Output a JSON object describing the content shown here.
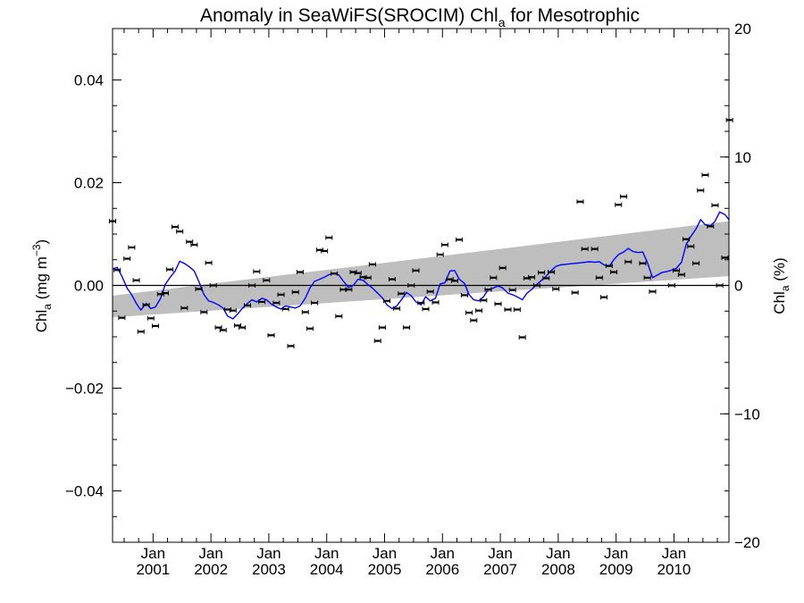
{
  "chart_data": {
    "type": "scatter",
    "title": {
      "main": "Anomaly in SeaWiFS(SROCIM) Chl",
      "sub": "a",
      "rest": " for Mesotrophic"
    },
    "ylabel_left": {
      "main": "Chl",
      "sub": "a",
      "units": " (mg m",
      "sup": "−3",
      "close": ")"
    },
    "ylabel_right": {
      "main": "Chl",
      "sub": "a",
      "units": " (%)"
    },
    "ylim_left": [
      -0.05,
      0.05
    ],
    "ylim_right": [
      -20,
      20
    ],
    "xlim": [
      2000.3,
      2010.95
    ],
    "yticks_left": [
      {
        "v": 0.04,
        "label": "0.04"
      },
      {
        "v": 0.02,
        "label": "0.02"
      },
      {
        "v": 0.0,
        "label": "0.00"
      },
      {
        "v": -0.02,
        "label": "−0.02"
      },
      {
        "v": -0.04,
        "label": "−0.04"
      }
    ],
    "yticks_right": [
      {
        "v": 20,
        "label": "20"
      },
      {
        "v": 10,
        "label": "10"
      },
      {
        "v": 0,
        "label": "0"
      },
      {
        "v": -10,
        "label": "−10"
      },
      {
        "v": -20,
        "label": "−20"
      }
    ],
    "xticks": [
      {
        "x": 2001.0,
        "month": "Jan",
        "year": "2001"
      },
      {
        "x": 2002.0,
        "month": "Jan",
        "year": "2002"
      },
      {
        "x": 2003.0,
        "month": "Jan",
        "year": "2003"
      },
      {
        "x": 2004.0,
        "month": "Jan",
        "year": "2004"
      },
      {
        "x": 2005.0,
        "month": "Jan",
        "year": "2005"
      },
      {
        "x": 2006.0,
        "month": "Jan",
        "year": "2006"
      },
      {
        "x": 2007.0,
        "month": "Jan",
        "year": "2007"
      },
      {
        "x": 2008.0,
        "month": "Jan",
        "year": "2008"
      },
      {
        "x": 2009.0,
        "month": "Jan",
        "year": "2009"
      },
      {
        "x": 2010.0,
        "month": "Jan",
        "year": "2010"
      }
    ],
    "band": {
      "x": [
        2000.3,
        2010.95
      ],
      "upper": [
        -0.002,
        0.0125
      ],
      "lower": [
        -0.0062,
        0.0018
      ],
      "color": "#bebebe"
    },
    "zero_line": 0,
    "series": [
      {
        "style": "markers",
        "color": "#000000",
        "points": [
          [
            2000.3,
            0.0125
          ],
          [
            2000.38,
            0.003
          ],
          [
            2000.46,
            -0.0063
          ],
          [
            2000.55,
            0.0052
          ],
          [
            2000.63,
            0.0074
          ],
          [
            2000.71,
            0.001
          ],
          [
            2000.79,
            -0.009
          ],
          [
            2000.88,
            -0.0038
          ],
          [
            2000.96,
            -0.0064
          ],
          [
            2001.04,
            -0.0079
          ],
          [
            2001.13,
            -0.0017
          ],
          [
            2001.21,
            -0.0015
          ],
          [
            2001.29,
            0.0031
          ],
          [
            2001.38,
            0.0114
          ],
          [
            2001.46,
            0.0105
          ],
          [
            2001.54,
            -0.0044
          ],
          [
            2001.63,
            0.0085
          ],
          [
            2001.71,
            0.0079
          ],
          [
            2001.79,
            -0.0007
          ],
          [
            2001.88,
            -0.0052
          ],
          [
            2001.96,
            0.0044
          ],
          [
            2002.04,
            0.0
          ],
          [
            2002.13,
            -0.0082
          ],
          [
            2002.21,
            -0.0087
          ],
          [
            2002.29,
            -0.0047
          ],
          [
            2002.38,
            -0.0049
          ],
          [
            2002.46,
            -0.0078
          ],
          [
            2002.54,
            -0.0082
          ],
          [
            2002.63,
            -0.0039
          ],
          [
            2002.71,
            0.0
          ],
          [
            2002.79,
            0.0027
          ],
          [
            2002.88,
            -0.0032
          ],
          [
            2002.96,
            0.001
          ],
          [
            2003.04,
            -0.0097
          ],
          [
            2003.13,
            -0.0034
          ],
          [
            2003.21,
            -0.0018
          ],
          [
            2003.29,
            -0.0046
          ],
          [
            2003.38,
            -0.0118
          ],
          [
            2003.46,
            -0.0013
          ],
          [
            2003.54,
            0.0026
          ],
          [
            2003.63,
            -0.0052
          ],
          [
            2003.71,
            -0.0084
          ],
          [
            2003.79,
            -0.0034
          ],
          [
            2003.88,
            0.0069
          ],
          [
            2003.96,
            0.0067
          ],
          [
            2004.04,
            0.0093
          ],
          [
            2004.13,
            0.0023
          ],
          [
            2004.21,
            -0.006
          ],
          [
            2004.29,
            -0.0008
          ],
          [
            2004.38,
            -0.0008
          ],
          [
            2004.46,
            0.0026
          ],
          [
            2004.54,
            0.0024
          ],
          [
            2004.63,
            0.0016
          ],
          [
            2004.71,
            0.0015
          ],
          [
            2004.79,
            0.0041
          ],
          [
            2004.88,
            -0.0108
          ],
          [
            2004.96,
            -0.0082
          ],
          [
            2005.04,
            -0.003
          ],
          [
            2005.13,
            0.0012
          ],
          [
            2005.21,
            -0.0045
          ],
          [
            2005.29,
            -0.0016
          ],
          [
            2005.38,
            -0.0082
          ],
          [
            2005.46,
            0.0
          ],
          [
            2005.54,
            0.0029
          ],
          [
            2005.63,
            -0.0034
          ],
          [
            2005.71,
            -0.0046
          ],
          [
            2005.79,
            -0.0012
          ],
          [
            2005.88,
            -0.0033
          ],
          [
            2005.96,
            0.006
          ],
          [
            2006.04,
            0.0079
          ],
          [
            2006.13,
            0.0012
          ],
          [
            2006.21,
            0.0009
          ],
          [
            2006.29,
            0.0089
          ],
          [
            2006.38,
            -0.0019
          ],
          [
            2006.46,
            -0.0053
          ],
          [
            2006.54,
            -0.0068
          ],
          [
            2006.63,
            -0.0049
          ],
          [
            2006.71,
            -0.0029
          ],
          [
            2006.79,
            -0.0008
          ],
          [
            2006.88,
            0.0015
          ],
          [
            2006.96,
            -0.0036
          ],
          [
            2007.04,
            0.0034
          ],
          [
            2007.13,
            -0.0047
          ],
          [
            2007.21,
            -0.0009
          ],
          [
            2007.29,
            -0.0047
          ],
          [
            2007.38,
            -0.0101
          ],
          [
            2007.46,
            0.0014
          ],
          [
            2007.54,
            0.0016
          ],
          [
            2007.63,
            0.0
          ],
          [
            2007.71,
            0.0025
          ],
          [
            2007.79,
            0.0014
          ],
          [
            2007.88,
            0.0026
          ],
          [
            2007.96,
            -0.0007
          ],
          [
            2008.29,
            -0.0014
          ],
          [
            2008.38,
            0.0163
          ],
          [
            2008.46,
            0.0071
          ],
          [
            2008.63,
            0.0071
          ],
          [
            2008.71,
            0.0015
          ],
          [
            2008.79,
            -0.0023
          ],
          [
            2008.88,
            0.0038
          ],
          [
            2008.96,
            0.0026
          ],
          [
            2009.04,
            0.0157
          ],
          [
            2009.13,
            0.0173
          ],
          [
            2009.21,
            0.0046
          ],
          [
            2009.46,
            0.0043
          ],
          [
            2009.54,
            0.0015
          ],
          [
            2009.63,
            -0.0012
          ],
          [
            2009.96,
            0.0
          ],
          [
            2010.04,
            0.0029
          ],
          [
            2010.13,
            0.0021
          ],
          [
            2010.21,
            0.009
          ],
          [
            2010.29,
            0.0076
          ],
          [
            2010.38,
            0.0043
          ],
          [
            2010.46,
            0.0185
          ],
          [
            2010.54,
            0.0215
          ],
          [
            2010.63,
            0.0115
          ],
          [
            2010.71,
            0.0156
          ],
          [
            2010.79,
            0.0
          ],
          [
            2010.88,
            0.0054
          ],
          [
            2010.96,
            0.0322
          ]
        ]
      },
      {
        "style": "line",
        "color": "#0000ff",
        "points": [
          [
            2000.3,
            0.0032
          ],
          [
            2000.38,
            0.0035
          ],
          [
            2000.46,
            0.0018
          ],
          [
            2000.55,
            -0.0005
          ],
          [
            2000.63,
            -0.0018
          ],
          [
            2000.71,
            -0.0035
          ],
          [
            2000.79,
            -0.0048
          ],
          [
            2000.88,
            -0.0035
          ],
          [
            2000.96,
            -0.0045
          ],
          [
            2001.04,
            -0.0042
          ],
          [
            2001.13,
            -0.0025
          ],
          [
            2001.21,
            0.0002
          ],
          [
            2001.29,
            0.0015
          ],
          [
            2001.38,
            0.0028
          ],
          [
            2001.46,
            0.0047
          ],
          [
            2001.54,
            0.0043
          ],
          [
            2001.63,
            0.0036
          ],
          [
            2001.71,
            0.0028
          ],
          [
            2001.79,
            0.0008
          ],
          [
            2001.88,
            -0.0018
          ],
          [
            2001.96,
            -0.003
          ],
          [
            2002.04,
            -0.0033
          ],
          [
            2002.13,
            -0.0038
          ],
          [
            2002.21,
            -0.0044
          ],
          [
            2002.29,
            -0.006
          ],
          [
            2002.38,
            -0.0065
          ],
          [
            2002.46,
            -0.0056
          ],
          [
            2002.54,
            -0.0045
          ],
          [
            2002.63,
            -0.0035
          ],
          [
            2002.71,
            -0.0028
          ],
          [
            2002.79,
            -0.0032
          ],
          [
            2002.88,
            -0.0025
          ],
          [
            2002.96,
            -0.0028
          ],
          [
            2003.04,
            -0.0036
          ],
          [
            2003.13,
            -0.0042
          ],
          [
            2003.21,
            -0.0046
          ],
          [
            2003.29,
            -0.004
          ],
          [
            2003.38,
            -0.0042
          ],
          [
            2003.46,
            -0.0044
          ],
          [
            2003.54,
            -0.004
          ],
          [
            2003.63,
            -0.0025
          ],
          [
            2003.71,
            -0.0005
          ],
          [
            2003.79,
            0.0008
          ],
          [
            2003.88,
            0.0012
          ],
          [
            2003.96,
            0.0016
          ],
          [
            2004.04,
            0.0021
          ],
          [
            2004.13,
            0.0024
          ],
          [
            2004.21,
            0.002
          ],
          [
            2004.29,
            0.0008
          ],
          [
            2004.38,
            -0.0004
          ],
          [
            2004.46,
            0.0
          ],
          [
            2004.54,
            0.0012
          ],
          [
            2004.63,
            0.001
          ],
          [
            2004.71,
            0.0002
          ],
          [
            2004.79,
            -0.0005
          ],
          [
            2004.88,
            -0.0015
          ],
          [
            2004.96,
            -0.0024
          ],
          [
            2005.04,
            -0.0038
          ],
          [
            2005.13,
            -0.0045
          ],
          [
            2005.21,
            -0.004
          ],
          [
            2005.29,
            -0.0028
          ],
          [
            2005.38,
            -0.0014
          ],
          [
            2005.46,
            -0.002
          ],
          [
            2005.54,
            -0.0032
          ],
          [
            2005.63,
            -0.0038
          ],
          [
            2005.71,
            -0.0022
          ],
          [
            2005.79,
            -0.003
          ],
          [
            2005.88,
            -0.0025
          ],
          [
            2005.96,
            0.0003
          ],
          [
            2006.04,
            0.0005
          ],
          [
            2006.13,
            0.0028
          ],
          [
            2006.21,
            0.0029
          ],
          [
            2006.29,
            0.0012
          ],
          [
            2006.38,
            0.0004
          ],
          [
            2006.46,
            -0.0018
          ],
          [
            2006.54,
            -0.0028
          ],
          [
            2006.63,
            -0.003
          ],
          [
            2006.71,
            -0.0022
          ],
          [
            2006.79,
            -0.0008
          ],
          [
            2006.88,
            -0.0005
          ],
          [
            2006.96,
            -0.0001
          ],
          [
            2007.04,
            -0.0005
          ],
          [
            2007.13,
            -0.0015
          ],
          [
            2007.21,
            -0.0018
          ],
          [
            2007.29,
            -0.0022
          ],
          [
            2007.38,
            -0.0028
          ],
          [
            2007.46,
            -0.0015
          ],
          [
            2007.54,
            -0.0008
          ],
          [
            2007.63,
            0.0002
          ],
          [
            2007.71,
            0.001
          ],
          [
            2007.79,
            0.0018
          ],
          [
            2007.88,
            0.0029
          ],
          [
            2007.96,
            0.0037
          ],
          [
            2008.04,
            0.004
          ],
          [
            2008.13,
            0.0041
          ],
          [
            2008.21,
            0.0042
          ],
          [
            2008.29,
            0.0043
          ],
          [
            2008.38,
            0.0044
          ],
          [
            2008.46,
            0.0045
          ],
          [
            2008.54,
            0.0046
          ],
          [
            2008.63,
            0.0045
          ],
          [
            2008.71,
            0.0046
          ],
          [
            2008.79,
            0.004
          ],
          [
            2008.88,
            0.0037
          ],
          [
            2008.96,
            0.005
          ],
          [
            2009.04,
            0.006
          ],
          [
            2009.13,
            0.0065
          ],
          [
            2009.21,
            0.0072
          ],
          [
            2009.29,
            0.0066
          ],
          [
            2009.38,
            0.0064
          ],
          [
            2009.46,
            0.0065
          ],
          [
            2009.54,
            0.0045
          ],
          [
            2009.63,
            0.0015
          ],
          [
            2009.71,
            0.002
          ],
          [
            2009.79,
            0.0025
          ],
          [
            2009.88,
            0.0027
          ],
          [
            2009.96,
            0.003
          ],
          [
            2010.04,
            0.0033
          ],
          [
            2010.13,
            0.0045
          ],
          [
            2010.21,
            0.008
          ],
          [
            2010.29,
            0.0095
          ],
          [
            2010.38,
            0.011
          ],
          [
            2010.46,
            0.0128
          ],
          [
            2010.54,
            0.0118
          ],
          [
            2010.63,
            0.0116
          ],
          [
            2010.71,
            0.0125
          ],
          [
            2010.79,
            0.0143
          ],
          [
            2010.88,
            0.0138
          ],
          [
            2010.95,
            0.0128
          ]
        ]
      }
    ],
    "grid": false
  }
}
